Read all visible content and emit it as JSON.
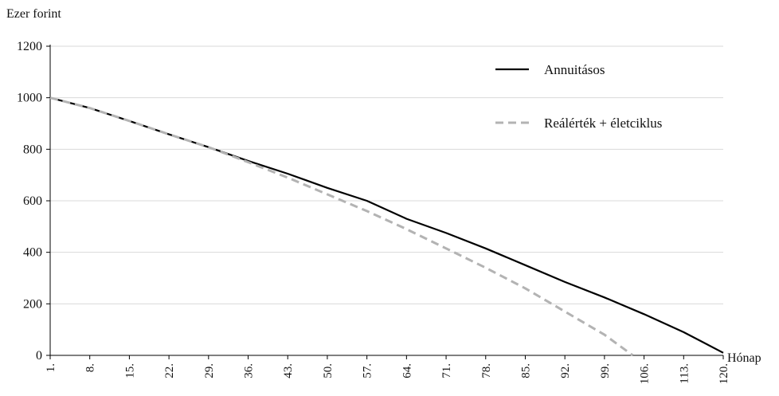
{
  "chart_data": {
    "type": "line",
    "ylabel": "Ezer forint",
    "xlabel": "Hónap",
    "ylim": [
      0,
      1200
    ],
    "y_ticks": [
      0,
      200,
      400,
      600,
      800,
      1000,
      1200
    ],
    "y_tick_labels": [
      "0",
      "200",
      "400",
      "600",
      "800",
      "1000",
      "1200"
    ],
    "xlim": [
      1,
      120
    ],
    "x_ticks": [
      1,
      8,
      15,
      22,
      29,
      36,
      43,
      50,
      57,
      64,
      71,
      78,
      85,
      92,
      99,
      106,
      113,
      120
    ],
    "x_tick_labels": [
      "1.",
      "8.",
      "15.",
      "22.",
      "29.",
      "36.",
      "43.",
      "50.",
      "57.",
      "64.",
      "71.",
      "78.",
      "85.",
      "92.",
      "99.",
      "106.",
      "113.",
      "120."
    ],
    "grid": "horizontal",
    "legend_position": "top-right",
    "series": [
      {
        "name": "Annuitásos",
        "color": "#000000",
        "style": "solid",
        "x": [
          1,
          8,
          15,
          22,
          29,
          36,
          43,
          50,
          57,
          64,
          71,
          78,
          85,
          92,
          99,
          106,
          113,
          120
        ],
        "y": [
          1000,
          960,
          910,
          858,
          808,
          755,
          705,
          650,
          600,
          530,
          475,
          415,
          350,
          285,
          225,
          160,
          90,
          10
        ]
      },
      {
        "name": "Reálérték + életciklus",
        "color": "#b3b3b3",
        "style": "dashed",
        "x": [
          1,
          8,
          15,
          22,
          29,
          36,
          43,
          50,
          57,
          64,
          71,
          78,
          85,
          92,
          99,
          104
        ],
        "y": [
          1000,
          960,
          910,
          858,
          808,
          750,
          690,
          625,
          560,
          490,
          415,
          340,
          260,
          170,
          80,
          0
        ]
      }
    ]
  }
}
